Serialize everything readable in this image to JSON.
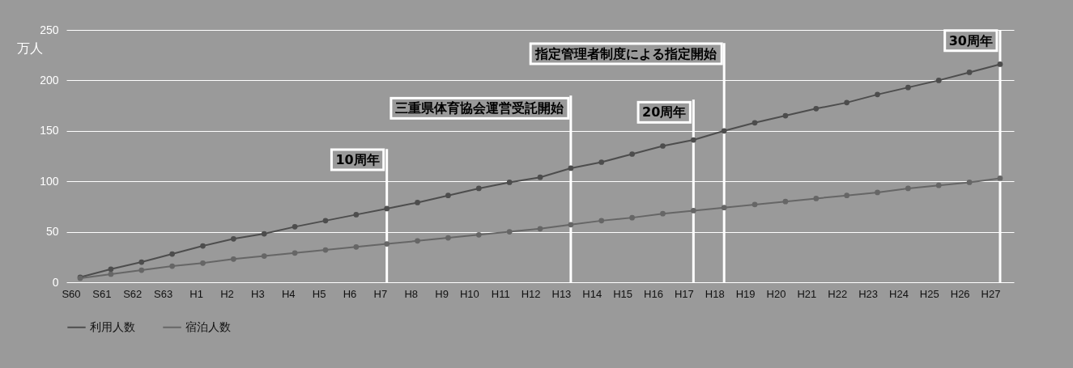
{
  "chart_data": {
    "type": "line",
    "categories": [
      "S60",
      "S61",
      "S62",
      "S63",
      "H1",
      "H2",
      "H3",
      "H4",
      "H5",
      "H6",
      "H7",
      "H8",
      "H9",
      "H10",
      "H11",
      "H12",
      "H13",
      "H14",
      "H15",
      "H16",
      "H17",
      "H18",
      "H19",
      "H20",
      "H21",
      "H22",
      "H23",
      "H24",
      "H25",
      "H26",
      "H27"
    ],
    "ylabel": "万人",
    "ylim": [
      0,
      250
    ],
    "yticks": [
      0,
      50,
      100,
      150,
      200,
      250
    ],
    "series": [
      {
        "name": "利用人数",
        "color": "#4d4d4d",
        "values": [
          5,
          13,
          20,
          28,
          36,
          43,
          48,
          55,
          61,
          67,
          73,
          79,
          86,
          93,
          99,
          104,
          113,
          119,
          127,
          135,
          141,
          150,
          158,
          165,
          172,
          178,
          186,
          193,
          200,
          208,
          216
        ]
      },
      {
        "name": "宿泊人数",
        "color": "#666666",
        "values": [
          4,
          8,
          12,
          16,
          19,
          23,
          26,
          29,
          32,
          35,
          38,
          41,
          44,
          47,
          50,
          53,
          57,
          61,
          64,
          68,
          71,
          74,
          77,
          80,
          83,
          86,
          89,
          93,
          96,
          99,
          103
        ]
      }
    ],
    "ref_lines": [
      {
        "axis": "x",
        "value": "H7",
        "label": "10周年",
        "color": "#ffffff"
      },
      {
        "axis": "x",
        "value": "H13",
        "label": "三重県体育協会運営受託開始",
        "color": "#ffffff"
      },
      {
        "axis": "x",
        "value": "H17",
        "label": "20周年",
        "color": "#ffffff"
      },
      {
        "axis": "x",
        "value": "H18",
        "label": "指定管理者制度による指定開始",
        "color": "#ffffff"
      },
      {
        "axis": "x",
        "value": "H27",
        "label": "30周年",
        "color": "#ffffff"
      }
    ],
    "grid": "y",
    "legend": "bottom",
    "marker": "circle",
    "line_style": "solid"
  }
}
